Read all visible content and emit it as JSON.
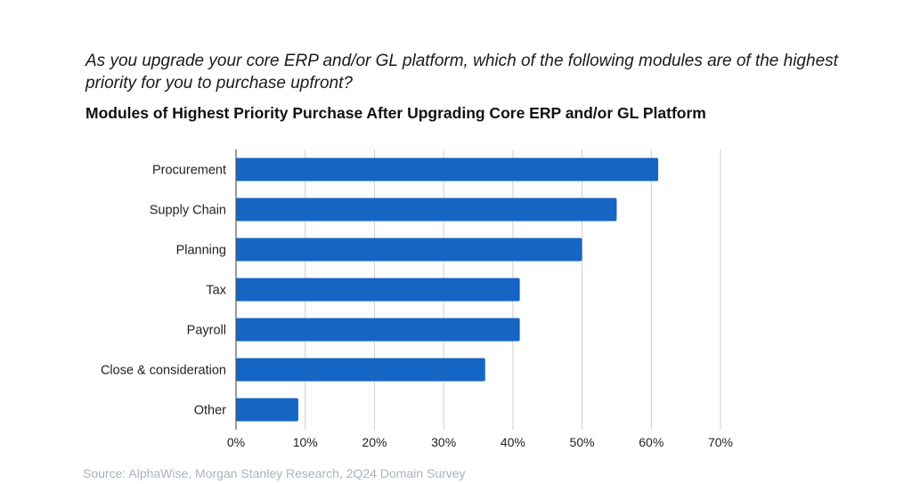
{
  "question": "As you upgrade your core ERP and/or GL platform, which of the following modules are of the highest priority for you to purchase upfront?",
  "source": "Source: AlphaWise, Morgan Stanley Research, 2Q24 Domain Survey",
  "colors": {
    "bar": "#1565c4",
    "grid": "#cfcfcf",
    "text": "#222222",
    "source": "#a9b3bf"
  },
  "chart_data": {
    "type": "bar",
    "orientation": "horizontal",
    "title": "Modules of Highest Priority Purchase After Upgrading Core ERP and/or GL Platform",
    "categories": [
      "Procurement",
      "Supply Chain",
      "Planning",
      "Tax",
      "Payroll",
      "Close & consideration",
      "Other"
    ],
    "values": [
      61,
      55,
      50,
      41,
      41,
      36,
      9
    ],
    "xlim": [
      0,
      70
    ],
    "xticks": [
      "0%",
      "10%",
      "20%",
      "30%",
      "40%",
      "50%",
      "60%",
      "70%"
    ],
    "grid": true,
    "legend": "none"
  }
}
